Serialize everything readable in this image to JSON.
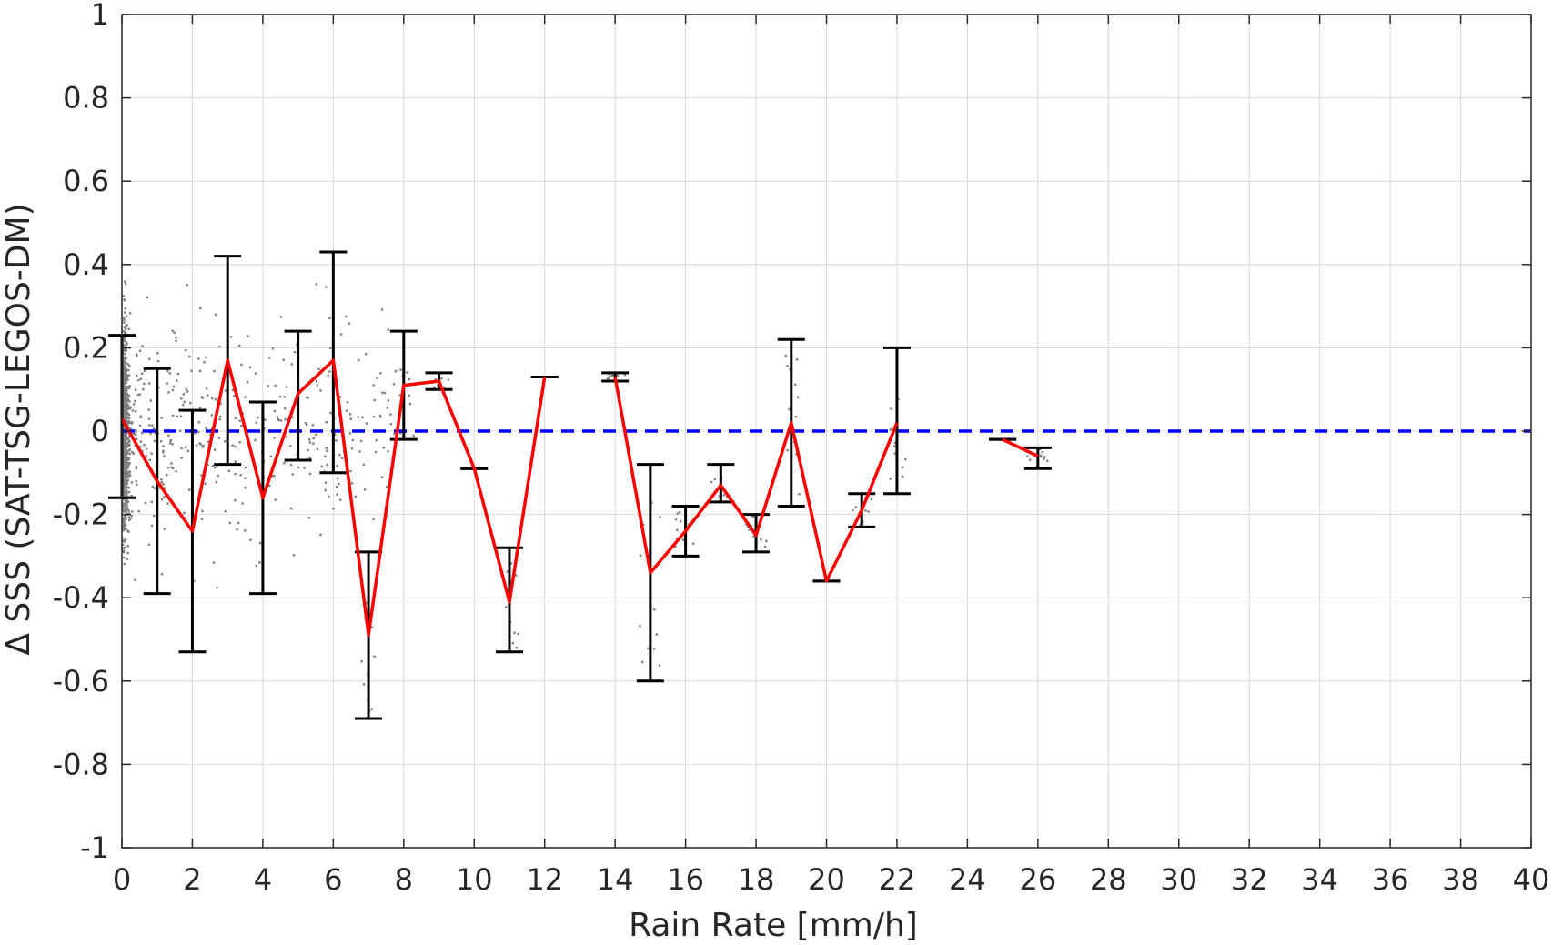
{
  "chart_data": {
    "type": "scatter",
    "title": "",
    "xlabel": "Rain Rate [mm/h]",
    "ylabel": "Δ SSS (SAT-TSG-LEGOS-DM)",
    "xlim": [
      0,
      40
    ],
    "ylim": [
      -1,
      1
    ],
    "xticks": [
      0,
      2,
      4,
      6,
      8,
      10,
      12,
      14,
      16,
      18,
      20,
      22,
      24,
      26,
      28,
      30,
      32,
      34,
      36,
      38,
      40
    ],
    "yticks": [
      1,
      0.8,
      0.6,
      0.4,
      0.2,
      0,
      -0.2,
      -0.4,
      -0.6,
      -0.8,
      -1
    ],
    "ytick_labels": [
      "1",
      "0.8",
      "0.6",
      "0.4",
      "0.2",
      "0",
      "-0.2",
      "-0.4",
      "-0.6",
      "-0.8",
      "-1"
    ],
    "grid": true,
    "reference_line": {
      "y": 0,
      "color": "#0000ff",
      "style": "dashed"
    },
    "colors": {
      "mean_line": "#ff0000",
      "error_bars": "#000000",
      "scatter": "#808080",
      "grid": "#d9d9d9"
    },
    "mean_series": [
      {
        "x": 0,
        "y": 0.03,
        "low": -0.16,
        "high": 0.23
      },
      {
        "x": 1,
        "y": -0.12,
        "low": -0.39,
        "high": 0.15
      },
      {
        "x": 2,
        "y": -0.24,
        "low": -0.53,
        "high": 0.05
      },
      {
        "x": 3,
        "y": 0.17,
        "low": -0.08,
        "high": 0.42
      },
      {
        "x": 4,
        "y": -0.16,
        "low": -0.39,
        "high": 0.07
      },
      {
        "x": 5,
        "y": 0.09,
        "low": -0.07,
        "high": 0.24
      },
      {
        "x": 6,
        "y": 0.17,
        "low": -0.1,
        "high": 0.43
      },
      {
        "x": 7,
        "y": -0.49,
        "low": -0.69,
        "high": -0.29
      },
      {
        "x": 8,
        "y": 0.11,
        "low": -0.02,
        "high": 0.24
      },
      {
        "x": 9,
        "y": 0.12,
        "low": 0.1,
        "high": 0.14
      },
      {
        "x": 10,
        "y": -0.09,
        "low": -0.09,
        "high": -0.09
      },
      {
        "x": 11,
        "y": -0.41,
        "low": -0.53,
        "high": -0.28
      },
      {
        "x": 12,
        "y": 0.13,
        "low": 0.13,
        "high": 0.13
      },
      {
        "x": 14,
        "y": 0.13,
        "low": 0.12,
        "high": 0.14
      },
      {
        "x": 15,
        "y": -0.34,
        "low": -0.6,
        "high": -0.08
      },
      {
        "x": 16,
        "y": -0.24,
        "low": -0.3,
        "high": -0.18
      },
      {
        "x": 17,
        "y": -0.13,
        "low": -0.17,
        "high": -0.08
      },
      {
        "x": 18,
        "y": -0.25,
        "low": -0.29,
        "high": -0.2
      },
      {
        "x": 19,
        "y": 0.02,
        "low": -0.18,
        "high": 0.22
      },
      {
        "x": 20,
        "y": -0.36,
        "low": -0.36,
        "high": -0.36
      },
      {
        "x": 21,
        "y": -0.19,
        "low": -0.23,
        "high": -0.15
      },
      {
        "x": 22,
        "y": 0.02,
        "low": -0.15,
        "high": 0.2
      },
      {
        "x": 25,
        "y": -0.02,
        "low": -0.02,
        "high": -0.02
      },
      {
        "x": 26,
        "y": -0.06,
        "low": -0.09,
        "high": -0.04
      }
    ],
    "mean_line_segments": [
      [
        0,
        1,
        2,
        3,
        4,
        5,
        6,
        7,
        8,
        9,
        10,
        11,
        12
      ],
      [
        14,
        15,
        16,
        17,
        18,
        19,
        20,
        21,
        22
      ],
      [
        25,
        26
      ]
    ]
  }
}
